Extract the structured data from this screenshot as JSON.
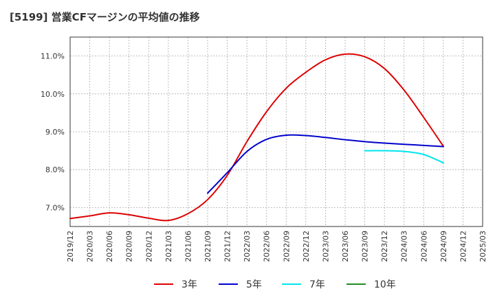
{
  "chart_data": {
    "type": "line",
    "title": "[5199]  営業CFマージンの平均値の推移",
    "xlabel": "",
    "ylabel": "",
    "x_ticks": [
      "2019/12",
      "2020/03",
      "2020/06",
      "2020/09",
      "2020/12",
      "2021/03",
      "2021/06",
      "2021/09",
      "2021/12",
      "2022/03",
      "2022/06",
      "2022/09",
      "2022/12",
      "2023/03",
      "2023/06",
      "2023/09",
      "2023/12",
      "2024/03",
      "2024/06",
      "2024/09",
      "2024/12",
      "2025/03"
    ],
    "y_ticks": [
      7.0,
      8.0,
      9.0,
      10.0,
      11.0
    ],
    "y_tick_labels": [
      "7.0%",
      "8.0%",
      "9.0%",
      "10.0%",
      "11.0%"
    ],
    "ylim": [
      6.5,
      11.5
    ],
    "grid": true,
    "legend_position": "bottom",
    "series": [
      {
        "name": "3年",
        "color": "#dd0000",
        "points": [
          [
            "2019/12",
            6.71
          ],
          [
            "2020/03",
            6.78
          ],
          [
            "2020/06",
            6.86
          ],
          [
            "2020/09",
            6.81
          ],
          [
            "2020/12",
            6.72
          ],
          [
            "2021/03",
            6.66
          ],
          [
            "2021/06",
            6.84
          ],
          [
            "2021/09",
            7.21
          ],
          [
            "2021/12",
            7.85
          ],
          [
            "2022/03",
            8.74
          ],
          [
            "2022/06",
            9.53
          ],
          [
            "2022/09",
            10.15
          ],
          [
            "2022/12",
            10.57
          ],
          [
            "2023/03",
            10.9
          ],
          [
            "2023/06",
            11.05
          ],
          [
            "2023/09",
            10.98
          ],
          [
            "2023/12",
            10.67
          ],
          [
            "2024/03",
            10.1
          ],
          [
            "2024/06",
            9.38
          ],
          [
            "2024/09",
            8.62
          ]
        ]
      },
      {
        "name": "5年",
        "color": "#0000cc",
        "points": [
          [
            "2021/09",
            7.38
          ],
          [
            "2021/12",
            7.92
          ],
          [
            "2022/03",
            8.48
          ],
          [
            "2022/06",
            8.8
          ],
          [
            "2022/09",
            8.91
          ],
          [
            "2022/12",
            8.9
          ],
          [
            "2023/03",
            8.85
          ],
          [
            "2023/06",
            8.79
          ],
          [
            "2023/09",
            8.74
          ],
          [
            "2023/12",
            8.7
          ],
          [
            "2024/03",
            8.67
          ],
          [
            "2024/06",
            8.64
          ],
          [
            "2024/09",
            8.61
          ]
        ]
      },
      {
        "name": "7年",
        "color": "#00e5ee",
        "points": [
          [
            "2023/09",
            8.5
          ],
          [
            "2023/12",
            8.5
          ],
          [
            "2024/03",
            8.48
          ],
          [
            "2024/06",
            8.4
          ],
          [
            "2024/09",
            8.18
          ]
        ]
      },
      {
        "name": "10年",
        "color": "#228b22",
        "points": []
      }
    ]
  }
}
